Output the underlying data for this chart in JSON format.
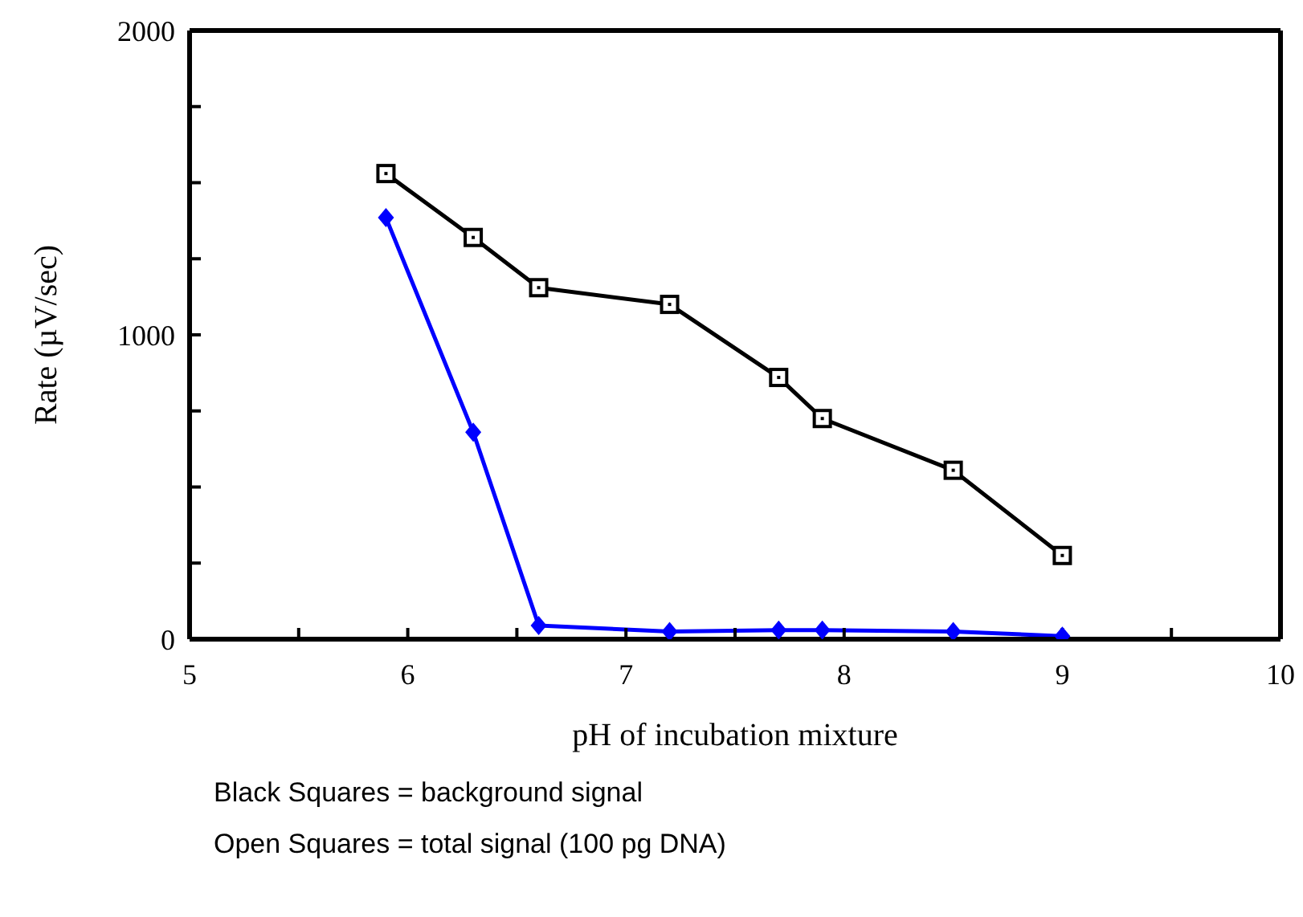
{
  "chart_data": {
    "type": "line",
    "xlabel": "pH of incubation mixture",
    "ylabel": "Rate (µV/sec)",
    "x": [
      5.9,
      6.3,
      6.6,
      7.2,
      7.7,
      7.9,
      8.5,
      9.0
    ],
    "series": [
      {
        "color": "#000000",
        "marker": "square",
        "values": [
          1530,
          1320,
          1155,
          1100,
          860,
          725,
          555,
          275
        ]
      },
      {
        "color": "#0000ff",
        "marker": "diamond",
        "values": [
          1385,
          680,
          45,
          25,
          30,
          30,
          25,
          10
        ]
      }
    ],
    "xlim": [
      5,
      10
    ],
    "xticks": [
      5,
      {
        "value": 5.5,
        "label": null
      },
      6,
      {
        "value": 6.5,
        "label": null
      },
      7,
      {
        "value": 7.5,
        "label": null
      },
      8,
      {
        "value": 8.5,
        "label": null
      },
      9,
      {
        "value": 9.5,
        "label": null
      },
      10
    ],
    "ylim": [
      0,
      2000
    ],
    "yticks": [
      0,
      {
        "value": 250,
        "label": null
      },
      {
        "value": 500,
        "label": null
      },
      {
        "value": 750,
        "label": null
      },
      1000,
      {
        "value": 1250,
        "label": null
      },
      {
        "value": 1500,
        "label": null
      },
      {
        "value": 1750,
        "label": null
      },
      2000
    ],
    "line_style": "solid",
    "annotations": [
      "Black Squares = background signal",
      "Open Squares = total signal (100 pg DNA)"
    ]
  }
}
